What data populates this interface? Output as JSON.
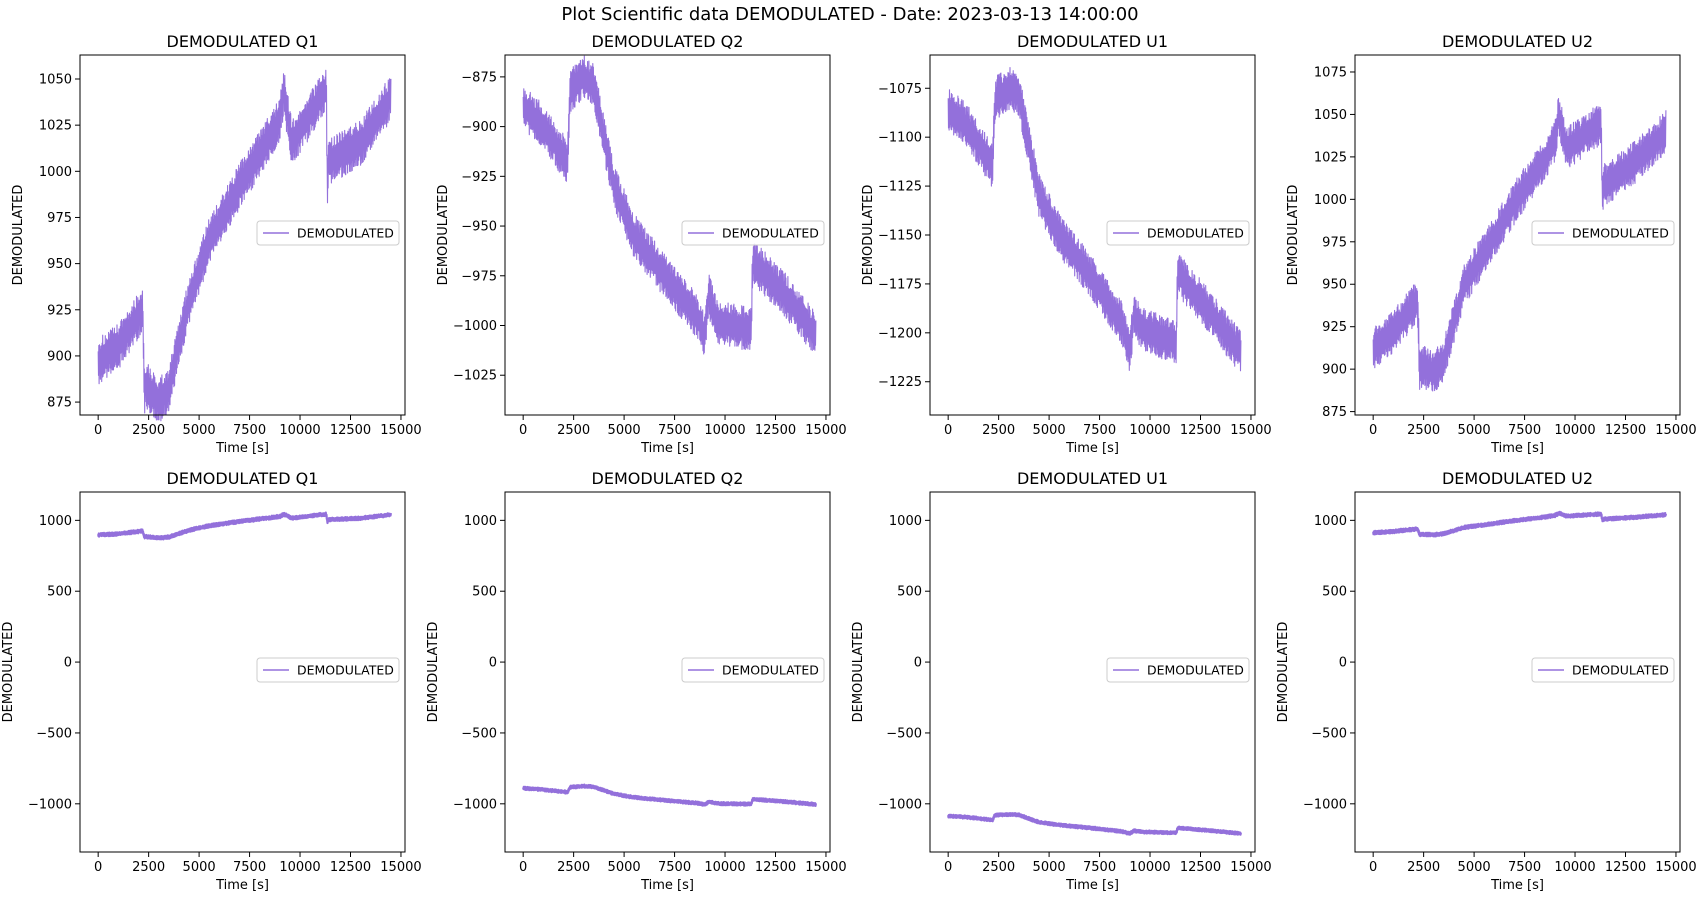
{
  "figure": {
    "suptitle": "Plot Scientific data DEMODULATED - Date: 2023-03-13 14:00:00",
    "line_color": "#9370DB",
    "x_ticks": [
      0,
      2500,
      5000,
      7500,
      10000,
      12500,
      15000
    ],
    "legend_label": "DEMODULATED",
    "ylabel": "DEMODULATED",
    "xlabel": "Time [s]"
  },
  "chart_data": [
    {
      "type": "line",
      "title": "DEMODULATED Q1",
      "xlabel": "Time [s]",
      "ylabel": "DEMODULATED",
      "xlim": [
        -900,
        15200
      ],
      "ylim": [
        868,
        1063
      ],
      "y_ticks": [
        875,
        900,
        925,
        950,
        975,
        1000,
        1025,
        1050
      ],
      "legend": "right",
      "noise": 9,
      "series": [
        {
          "name": "DEMODULATED",
          "x": [
            0,
            1000,
            2200,
            2300,
            2350,
            3000,
            3500,
            4500,
            5500,
            7000,
            8600,
            9000,
            9200,
            9600,
            11300,
            11350,
            11400,
            13000,
            14500
          ],
          "y": [
            897,
            905,
            925,
            880,
            885,
            875,
            882,
            930,
            962,
            992,
            1020,
            1028,
            1043,
            1015,
            1045,
            990,
            1005,
            1015,
            1040
          ]
        }
      ]
    },
    {
      "type": "line",
      "title": "DEMODULATED Q2",
      "xlabel": "Time [s]",
      "ylabel": "DEMODULATED",
      "xlim": [
        -900,
        15200
      ],
      "ylim": [
        -1045,
        -864
      ],
      "y_ticks": [
        -1025,
        -1000,
        -975,
        -950,
        -925,
        -900,
        -875
      ],
      "legend": "right",
      "noise": 8,
      "series": [
        {
          "name": "DEMODULATED",
          "x": [
            0,
            1000,
            2200,
            2300,
            2350,
            3000,
            3500,
            4500,
            5500,
            7000,
            8600,
            9000,
            9200,
            9600,
            11300,
            11350,
            11400,
            13000,
            14500
          ],
          "y": [
            -890,
            -900,
            -918,
            -888,
            -882,
            -875,
            -880,
            -930,
            -955,
            -975,
            -995,
            -1005,
            -985,
            -998,
            -1002,
            -975,
            -968,
            -985,
            -1005
          ]
        }
      ]
    },
    {
      "type": "line",
      "title": "DEMODULATED U1",
      "xlabel": "Time [s]",
      "ylabel": "DEMODULATED",
      "xlim": [
        -900,
        15200
      ],
      "ylim": [
        -1242,
        -1058
      ],
      "y_ticks": [
        -1225,
        -1200,
        -1175,
        -1150,
        -1125,
        -1100,
        -1075
      ],
      "legend": "right",
      "noise": 8,
      "series": [
        {
          "name": "DEMODULATED",
          "x": [
            0,
            1000,
            2200,
            2300,
            2350,
            3000,
            3500,
            4500,
            5500,
            7000,
            8600,
            9000,
            9200,
            9600,
            11300,
            11350,
            11400,
            13000,
            14500
          ],
          "y": [
            -1085,
            -1095,
            -1115,
            -1085,
            -1080,
            -1075,
            -1078,
            -1130,
            -1150,
            -1170,
            -1195,
            -1210,
            -1190,
            -1198,
            -1205,
            -1178,
            -1170,
            -1190,
            -1210
          ]
        }
      ]
    },
    {
      "type": "line",
      "title": "DEMODULATED U2",
      "xlabel": "Time [s]",
      "ylabel": "DEMODULATED",
      "xlim": [
        -900,
        15200
      ],
      "ylim": [
        873,
        1085
      ],
      "y_ticks": [
        875,
        900,
        925,
        950,
        975,
        1000,
        1025,
        1050,
        1075
      ],
      "legend": "right",
      "noise": 9,
      "series": [
        {
          "name": "DEMODULATED",
          "x": [
            0,
            1000,
            2200,
            2300,
            2350,
            3000,
            3500,
            4500,
            5500,
            7000,
            8600,
            9000,
            9200,
            9600,
            11300,
            11350,
            11400,
            13000,
            14500
          ],
          "y": [
            912,
            922,
            940,
            900,
            902,
            898,
            905,
            950,
            968,
            998,
            1025,
            1035,
            1050,
            1030,
            1045,
            1000,
            1008,
            1022,
            1040
          ]
        }
      ]
    },
    {
      "type": "line",
      "title": "DEMODULATED Q1",
      "xlabel": "Time [s]",
      "ylabel": "DEMODULATED",
      "xlim": [
        -900,
        15200
      ],
      "ylim": [
        -1340,
        1200
      ],
      "y_ticks": [
        -1000,
        -500,
        0,
        500,
        1000
      ],
      "legend": "right",
      "noise": 9,
      "series": [
        {
          "name": "DEMODULATED",
          "x": [
            0,
            1000,
            2200,
            2300,
            2350,
            3000,
            3500,
            4500,
            5500,
            7000,
            8600,
            9000,
            9200,
            9600,
            11300,
            11350,
            11400,
            13000,
            14500
          ],
          "y": [
            897,
            905,
            925,
            880,
            885,
            875,
            882,
            930,
            962,
            992,
            1020,
            1028,
            1043,
            1015,
            1045,
            990,
            1005,
            1015,
            1040
          ]
        }
      ]
    },
    {
      "type": "line",
      "title": "DEMODULATED Q2",
      "xlabel": "Time [s]",
      "ylabel": "DEMODULATED",
      "xlim": [
        -900,
        15200
      ],
      "ylim": [
        -1340,
        1200
      ],
      "y_ticks": [
        -1000,
        -500,
        0,
        500,
        1000
      ],
      "legend": "right",
      "noise": 8,
      "series": [
        {
          "name": "DEMODULATED",
          "x": [
            0,
            1000,
            2200,
            2300,
            2350,
            3000,
            3500,
            4500,
            5500,
            7000,
            8600,
            9000,
            9200,
            9600,
            11300,
            11350,
            11400,
            13000,
            14500
          ],
          "y": [
            -890,
            -900,
            -918,
            -888,
            -882,
            -875,
            -880,
            -930,
            -955,
            -975,
            -995,
            -1005,
            -985,
            -998,
            -1002,
            -975,
            -968,
            -985,
            -1005
          ]
        }
      ]
    },
    {
      "type": "line",
      "title": "DEMODULATED U1",
      "xlabel": "Time [s]",
      "ylabel": "DEMODULATED",
      "xlim": [
        -900,
        15200
      ],
      "ylim": [
        -1340,
        1200
      ],
      "y_ticks": [
        -1000,
        -500,
        0,
        500,
        1000
      ],
      "legend": "right",
      "noise": 8,
      "series": [
        {
          "name": "DEMODULATED",
          "x": [
            0,
            1000,
            2200,
            2300,
            2350,
            3000,
            3500,
            4500,
            5500,
            7000,
            8600,
            9000,
            9200,
            9600,
            11300,
            11350,
            11400,
            13000,
            14500
          ],
          "y": [
            -1085,
            -1095,
            -1115,
            -1085,
            -1080,
            -1075,
            -1078,
            -1130,
            -1150,
            -1170,
            -1195,
            -1210,
            -1190,
            -1198,
            -1205,
            -1178,
            -1170,
            -1190,
            -1210
          ]
        }
      ]
    },
    {
      "type": "line",
      "title": "DEMODULATED U2",
      "xlabel": "Time [s]",
      "ylabel": "DEMODULATED",
      "xlim": [
        -900,
        15200
      ],
      "ylim": [
        -1340,
        1200
      ],
      "y_ticks": [
        -1000,
        -500,
        0,
        500,
        1000
      ],
      "legend": "right",
      "noise": 9,
      "series": [
        {
          "name": "DEMODULATED",
          "x": [
            0,
            1000,
            2200,
            2300,
            2350,
            3000,
            3500,
            4500,
            5500,
            7000,
            8600,
            9000,
            9200,
            9600,
            11300,
            11350,
            11400,
            13000,
            14500
          ],
          "y": [
            912,
            922,
            940,
            900,
            902,
            898,
            905,
            950,
            968,
            998,
            1025,
            1035,
            1050,
            1030,
            1045,
            1000,
            1008,
            1022,
            1040
          ]
        }
      ]
    }
  ]
}
